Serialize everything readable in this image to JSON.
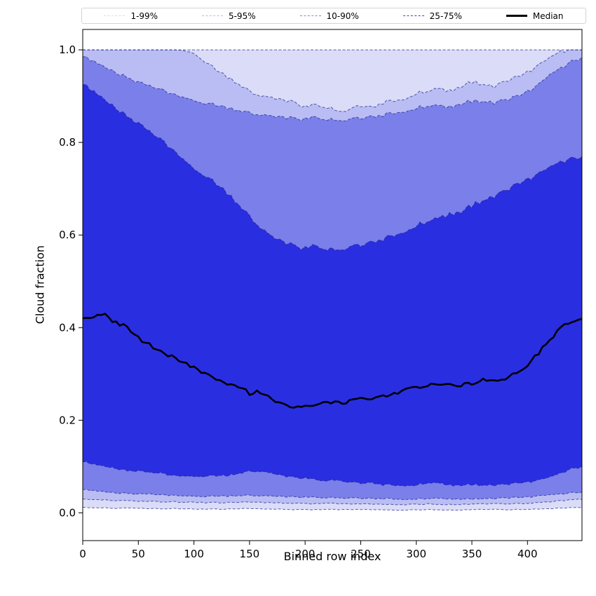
{
  "legend": {
    "entries": [
      {
        "label": "1-99%",
        "color": "#d6d8f6",
        "style": "dashed",
        "weight": 1.6
      },
      {
        "label": "5-95%",
        "color": "#b5b9f2",
        "style": "dashed",
        "weight": 1.6
      },
      {
        "label": "10-90%",
        "color": "#8287ea",
        "style": "dashed",
        "weight": 1.6
      },
      {
        "label": "25-75%",
        "color": "#3c41d6",
        "style": "dashed",
        "weight": 1.6
      },
      {
        "label": "Median",
        "color": "#000000",
        "style": "solid",
        "weight": 3
      }
    ]
  },
  "axes": {
    "x_ticks": [
      {
        "label": "0",
        "value": 0
      },
      {
        "label": "50",
        "value": 50
      },
      {
        "label": "100",
        "value": 100
      },
      {
        "label": "150",
        "value": 150
      },
      {
        "label": "200",
        "value": 200
      },
      {
        "label": "250",
        "value": 250
      },
      {
        "label": "300",
        "value": 300
      },
      {
        "label": "350",
        "value": 350
      },
      {
        "label": "400",
        "value": 400
      }
    ],
    "y_ticks": [
      {
        "label": "0.0",
        "value": 0.0
      },
      {
        "label": "0.2",
        "value": 0.2
      },
      {
        "label": "0.4",
        "value": 0.4
      },
      {
        "label": "0.6",
        "value": 0.6
      },
      {
        "label": "0.8",
        "value": 0.8
      },
      {
        "label": "1.0",
        "value": 1.0
      }
    ]
  },
  "chart_data": {
    "type": "area",
    "title": "",
    "xlabel": "Binned row index",
    "ylabel": "Cloud fraction",
    "xlim": [
      0,
      449
    ],
    "ylim": [
      -0.06,
      1.044
    ],
    "grid": false,
    "legend_position": "top-expanded",
    "edge_color": "#1b1f8a",
    "median_color": "#000000",
    "x": [
      0,
      10,
      20,
      30,
      40,
      50,
      60,
      70,
      80,
      90,
      100,
      110,
      120,
      130,
      140,
      150,
      160,
      170,
      180,
      190,
      200,
      210,
      220,
      230,
      240,
      250,
      260,
      270,
      280,
      290,
      300,
      310,
      320,
      330,
      340,
      350,
      360,
      370,
      380,
      390,
      400,
      410,
      420,
      430,
      440,
      449
    ],
    "percentiles": {
      "p1": [
        0.012,
        0.011,
        0.011,
        0.01,
        0.01,
        0.01,
        0.009,
        0.009,
        0.009,
        0.009,
        0.008,
        0.008,
        0.008,
        0.008,
        0.009,
        0.009,
        0.008,
        0.008,
        0.008,
        0.007,
        0.007,
        0.007,
        0.007,
        0.007,
        0.007,
        0.007,
        0.007,
        0.007,
        0.006,
        0.006,
        0.006,
        0.007,
        0.007,
        0.006,
        0.006,
        0.007,
        0.007,
        0.007,
        0.007,
        0.007,
        0.008,
        0.008,
        0.009,
        0.01,
        0.011,
        0.011
      ],
      "p5": [
        0.03,
        0.029,
        0.028,
        0.027,
        0.026,
        0.025,
        0.025,
        0.024,
        0.024,
        0.023,
        0.023,
        0.022,
        0.022,
        0.022,
        0.023,
        0.023,
        0.022,
        0.022,
        0.021,
        0.021,
        0.02,
        0.02,
        0.02,
        0.02,
        0.019,
        0.019,
        0.019,
        0.019,
        0.018,
        0.018,
        0.018,
        0.019,
        0.019,
        0.018,
        0.018,
        0.019,
        0.019,
        0.019,
        0.02,
        0.02,
        0.021,
        0.022,
        0.024,
        0.026,
        0.028,
        0.029
      ],
      "p10": [
        0.05,
        0.048,
        0.045,
        0.043,
        0.042,
        0.04,
        0.04,
        0.038,
        0.038,
        0.037,
        0.037,
        0.036,
        0.036,
        0.036,
        0.037,
        0.038,
        0.037,
        0.036,
        0.035,
        0.034,
        0.034,
        0.033,
        0.033,
        0.032,
        0.032,
        0.032,
        0.031,
        0.031,
        0.03,
        0.03,
        0.03,
        0.031,
        0.031,
        0.03,
        0.03,
        0.03,
        0.031,
        0.031,
        0.032,
        0.033,
        0.034,
        0.036,
        0.038,
        0.04,
        0.043,
        0.045
      ],
      "p25": [
        0.11,
        0.105,
        0.1,
        0.096,
        0.091,
        0.09,
        0.086,
        0.085,
        0.081,
        0.08,
        0.08,
        0.08,
        0.08,
        0.08,
        0.085,
        0.09,
        0.09,
        0.085,
        0.08,
        0.076,
        0.075,
        0.071,
        0.07,
        0.07,
        0.066,
        0.065,
        0.065,
        0.061,
        0.06,
        0.06,
        0.06,
        0.065,
        0.064,
        0.06,
        0.06,
        0.061,
        0.06,
        0.06,
        0.061,
        0.064,
        0.066,
        0.07,
        0.076,
        0.085,
        0.095,
        0.1
      ],
      "median": [
        0.42,
        0.424,
        0.426,
        0.412,
        0.4,
        0.377,
        0.362,
        0.35,
        0.336,
        0.326,
        0.312,
        0.3,
        0.287,
        0.276,
        0.27,
        0.259,
        0.261,
        0.247,
        0.236,
        0.23,
        0.229,
        0.234,
        0.24,
        0.236,
        0.241,
        0.246,
        0.244,
        0.25,
        0.256,
        0.264,
        0.271,
        0.274,
        0.281,
        0.276,
        0.276,
        0.281,
        0.286,
        0.284,
        0.291,
        0.3,
        0.319,
        0.344,
        0.374,
        0.399,
        0.414,
        0.419
      ],
      "p75": [
        0.925,
        0.91,
        0.891,
        0.874,
        0.856,
        0.84,
        0.821,
        0.805,
        0.786,
        0.766,
        0.746,
        0.73,
        0.71,
        0.69,
        0.666,
        0.641,
        0.616,
        0.596,
        0.585,
        0.576,
        0.571,
        0.576,
        0.57,
        0.566,
        0.574,
        0.58,
        0.585,
        0.591,
        0.6,
        0.61,
        0.62,
        0.63,
        0.636,
        0.645,
        0.651,
        0.664,
        0.675,
        0.684,
        0.695,
        0.709,
        0.719,
        0.731,
        0.744,
        0.756,
        0.764,
        0.77
      ],
      "p90": [
        0.985,
        0.975,
        0.962,
        0.951,
        0.94,
        0.929,
        0.92,
        0.913,
        0.905,
        0.899,
        0.893,
        0.886,
        0.88,
        0.874,
        0.869,
        0.864,
        0.86,
        0.856,
        0.854,
        0.851,
        0.85,
        0.854,
        0.85,
        0.846,
        0.85,
        0.854,
        0.856,
        0.859,
        0.864,
        0.869,
        0.874,
        0.879,
        0.879,
        0.876,
        0.884,
        0.889,
        0.889,
        0.886,
        0.891,
        0.899,
        0.909,
        0.924,
        0.944,
        0.959,
        0.974,
        0.984
      ],
      "p95": [
        1.0,
        1.0,
        1.0,
        1.0,
        1.0,
        1.0,
        1.0,
        1.0,
        1.0,
        0.999,
        0.995,
        0.976,
        0.956,
        0.941,
        0.926,
        0.911,
        0.901,
        0.896,
        0.891,
        0.886,
        0.876,
        0.881,
        0.876,
        0.866,
        0.871,
        0.881,
        0.876,
        0.886,
        0.891,
        0.896,
        0.906,
        0.911,
        0.916,
        0.911,
        0.921,
        0.931,
        0.926,
        0.921,
        0.931,
        0.941,
        0.951,
        0.966,
        0.981,
        0.995,
        1.0,
        1.0
      ],
      "p99": [
        1,
        1,
        1,
        1,
        1,
        1,
        1,
        1,
        1,
        1,
        1,
        1,
        1,
        1,
        1,
        1,
        1,
        1,
        1,
        1,
        1,
        1,
        1,
        1,
        1,
        1,
        1,
        1,
        1,
        1,
        1,
        1,
        1,
        1,
        1,
        1,
        1,
        1,
        1,
        1,
        1,
        1,
        1,
        1,
        1,
        1
      ]
    },
    "bands": [
      {
        "label": "1-99%",
        "lower": "p1",
        "upper": "p99",
        "fill": "#dbddf8"
      },
      {
        "label": "5-95%",
        "lower": "p5",
        "upper": "p95",
        "fill": "#b9bdf3"
      },
      {
        "label": "10-90%",
        "lower": "p10",
        "upper": "p90",
        "fill": "#7a7fe9"
      },
      {
        "label": "25-75%",
        "lower": "p25",
        "upper": "p75",
        "fill": "#2a2ee1"
      }
    ]
  }
}
